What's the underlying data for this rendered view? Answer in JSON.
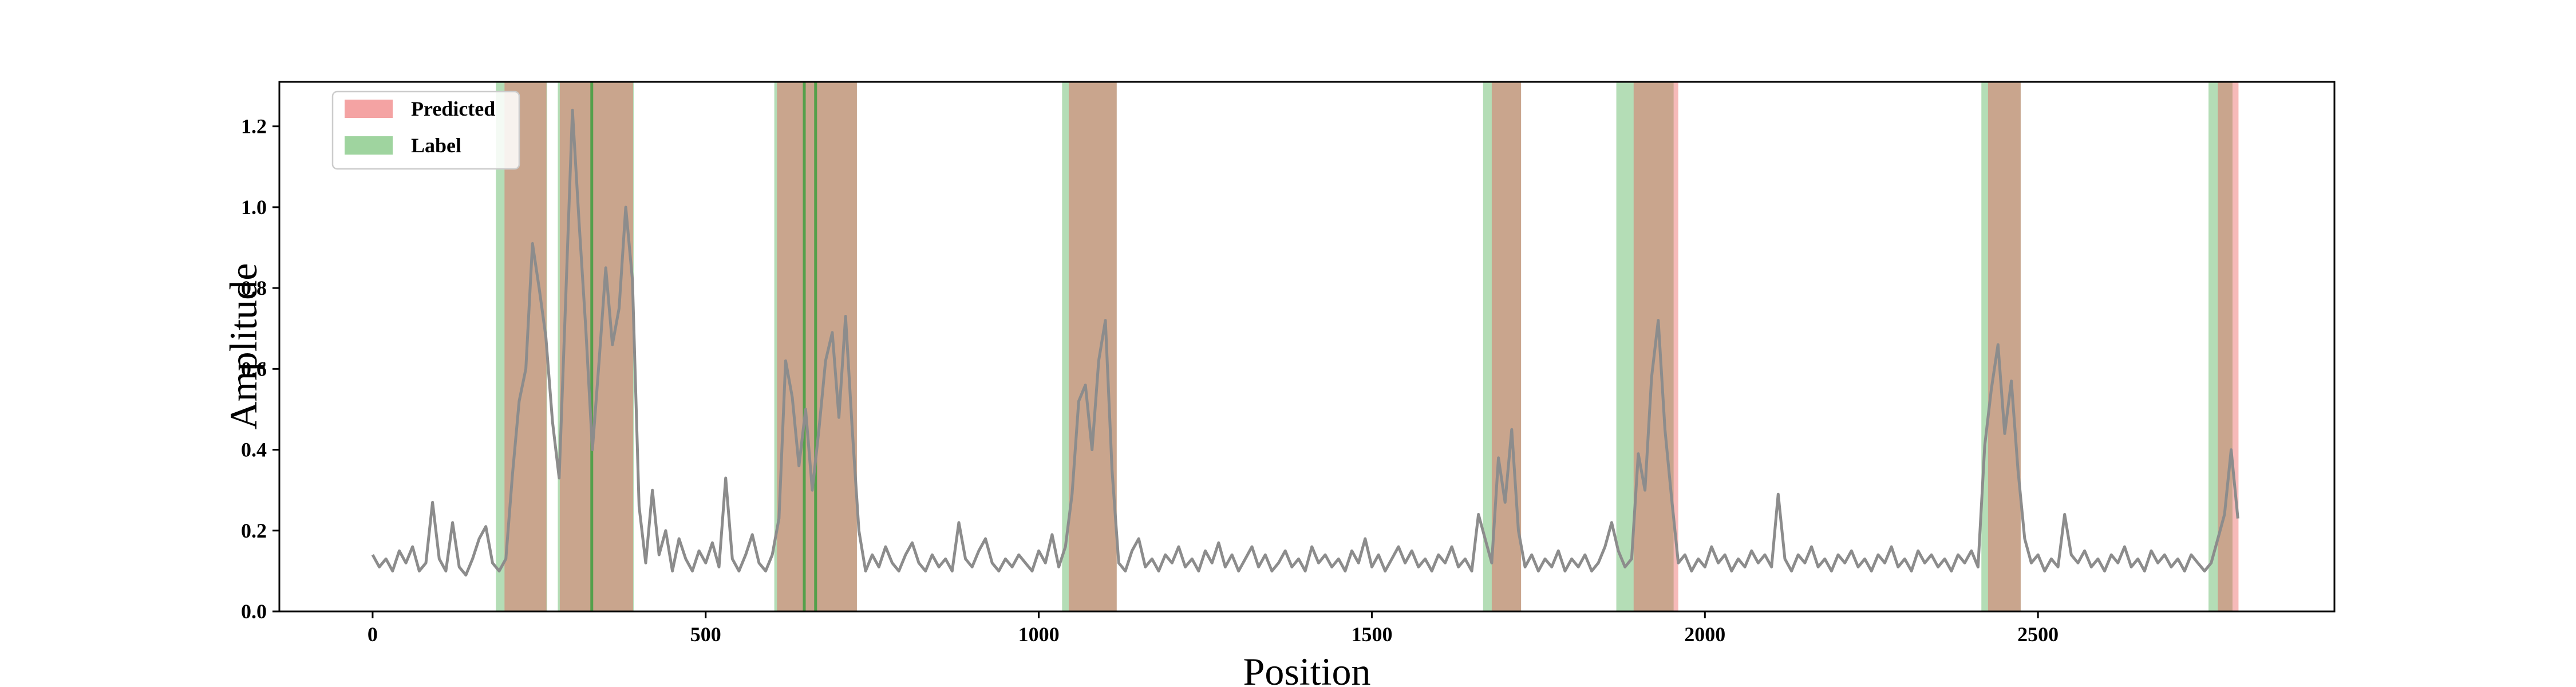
{
  "chart_data": {
    "type": "line",
    "title": "",
    "xlabel": "Position",
    "ylabel": "Amplitude",
    "xlim": [
      -140,
      2945
    ],
    "ylim": [
      0,
      1.31
    ],
    "x_ticks": [
      0,
      500,
      1000,
      1500,
      2000,
      2500
    ],
    "y_ticks": [
      0.0,
      0.2,
      0.4,
      0.6,
      0.8,
      1.0,
      1.2
    ],
    "x_tick_labels": [
      "0",
      "500",
      "1000",
      "1500",
      "2000",
      "2500"
    ],
    "y_tick_labels": [
      "0.0",
      "0.2",
      "0.4",
      "0.6",
      "0.8",
      "1.0",
      "1.2"
    ],
    "grid": false,
    "legend": {
      "position": "top-left",
      "entries": [
        {
          "label": "Predicted",
          "color": "#f4a3a3"
        },
        {
          "label": "Label",
          "color": "#9fd49f"
        }
      ]
    },
    "series": [
      {
        "color": "#8c8c8c",
        "points": [
          [
            0,
            0.14
          ],
          [
            10,
            0.11
          ],
          [
            20,
            0.13
          ],
          [
            30,
            0.1
          ],
          [
            40,
            0.15
          ],
          [
            50,
            0.12
          ],
          [
            60,
            0.16
          ],
          [
            70,
            0.1
          ],
          [
            80,
            0.12
          ],
          [
            90,
            0.27
          ],
          [
            100,
            0.13
          ],
          [
            110,
            0.1
          ],
          [
            120,
            0.22
          ],
          [
            130,
            0.11
          ],
          [
            140,
            0.09
          ],
          [
            150,
            0.13
          ],
          [
            160,
            0.18
          ],
          [
            170,
            0.21
          ],
          [
            180,
            0.12
          ],
          [
            190,
            0.1
          ],
          [
            200,
            0.13
          ],
          [
            210,
            0.34
          ],
          [
            220,
            0.52
          ],
          [
            230,
            0.6
          ],
          [
            240,
            0.91
          ],
          [
            250,
            0.8
          ],
          [
            260,
            0.68
          ],
          [
            270,
            0.47
          ],
          [
            280,
            0.33
          ],
          [
            290,
            0.78
          ],
          [
            300,
            1.24
          ],
          [
            310,
            0.96
          ],
          [
            320,
            0.7
          ],
          [
            330,
            0.4
          ],
          [
            340,
            0.62
          ],
          [
            350,
            0.85
          ],
          [
            360,
            0.66
          ],
          [
            370,
            0.75
          ],
          [
            380,
            1.0
          ],
          [
            390,
            0.82
          ],
          [
            400,
            0.26
          ],
          [
            410,
            0.12
          ],
          [
            420,
            0.3
          ],
          [
            430,
            0.14
          ],
          [
            440,
            0.2
          ],
          [
            450,
            0.1
          ],
          [
            460,
            0.18
          ],
          [
            470,
            0.13
          ],
          [
            480,
            0.1
          ],
          [
            490,
            0.15
          ],
          [
            500,
            0.12
          ],
          [
            510,
            0.17
          ],
          [
            520,
            0.11
          ],
          [
            530,
            0.33
          ],
          [
            540,
            0.13
          ],
          [
            550,
            0.1
          ],
          [
            560,
            0.14
          ],
          [
            570,
            0.19
          ],
          [
            580,
            0.12
          ],
          [
            590,
            0.1
          ],
          [
            600,
            0.14
          ],
          [
            610,
            0.23
          ],
          [
            620,
            0.62
          ],
          [
            630,
            0.53
          ],
          [
            640,
            0.36
          ],
          [
            650,
            0.5
          ],
          [
            660,
            0.3
          ],
          [
            670,
            0.45
          ],
          [
            680,
            0.62
          ],
          [
            690,
            0.69
          ],
          [
            700,
            0.48
          ],
          [
            710,
            0.73
          ],
          [
            720,
            0.45
          ],
          [
            730,
            0.2
          ],
          [
            740,
            0.1
          ],
          [
            750,
            0.14
          ],
          [
            760,
            0.11
          ],
          [
            770,
            0.16
          ],
          [
            780,
            0.12
          ],
          [
            790,
            0.1
          ],
          [
            800,
            0.14
          ],
          [
            810,
            0.17
          ],
          [
            820,
            0.12
          ],
          [
            830,
            0.1
          ],
          [
            840,
            0.14
          ],
          [
            850,
            0.11
          ],
          [
            860,
            0.13
          ],
          [
            870,
            0.1
          ],
          [
            880,
            0.22
          ],
          [
            890,
            0.13
          ],
          [
            900,
            0.11
          ],
          [
            910,
            0.15
          ],
          [
            920,
            0.18
          ],
          [
            930,
            0.12
          ],
          [
            940,
            0.1
          ],
          [
            950,
            0.13
          ],
          [
            960,
            0.11
          ],
          [
            970,
            0.14
          ],
          [
            980,
            0.12
          ],
          [
            990,
            0.1
          ],
          [
            1000,
            0.15
          ],
          [
            1010,
            0.12
          ],
          [
            1020,
            0.19
          ],
          [
            1030,
            0.11
          ],
          [
            1040,
            0.16
          ],
          [
            1050,
            0.29
          ],
          [
            1060,
            0.52
          ],
          [
            1070,
            0.56
          ],
          [
            1080,
            0.4
          ],
          [
            1090,
            0.62
          ],
          [
            1100,
            0.72
          ],
          [
            1110,
            0.35
          ],
          [
            1120,
            0.12
          ],
          [
            1130,
            0.1
          ],
          [
            1140,
            0.15
          ],
          [
            1150,
            0.18
          ],
          [
            1160,
            0.11
          ],
          [
            1170,
            0.13
          ],
          [
            1180,
            0.1
          ],
          [
            1190,
            0.14
          ],
          [
            1200,
            0.12
          ],
          [
            1210,
            0.16
          ],
          [
            1220,
            0.11
          ],
          [
            1230,
            0.13
          ],
          [
            1240,
            0.1
          ],
          [
            1250,
            0.15
          ],
          [
            1260,
            0.12
          ],
          [
            1270,
            0.17
          ],
          [
            1280,
            0.11
          ],
          [
            1290,
            0.14
          ],
          [
            1300,
            0.1
          ],
          [
            1310,
            0.13
          ],
          [
            1320,
            0.16
          ],
          [
            1330,
            0.11
          ],
          [
            1340,
            0.14
          ],
          [
            1350,
            0.1
          ],
          [
            1360,
            0.12
          ],
          [
            1370,
            0.15
          ],
          [
            1380,
            0.11
          ],
          [
            1390,
            0.13
          ],
          [
            1400,
            0.1
          ],
          [
            1410,
            0.16
          ],
          [
            1420,
            0.12
          ],
          [
            1430,
            0.14
          ],
          [
            1440,
            0.11
          ],
          [
            1450,
            0.13
          ],
          [
            1460,
            0.1
          ],
          [
            1470,
            0.15
          ],
          [
            1480,
            0.12
          ],
          [
            1490,
            0.18
          ],
          [
            1500,
            0.11
          ],
          [
            1510,
            0.14
          ],
          [
            1520,
            0.1
          ],
          [
            1530,
            0.13
          ],
          [
            1540,
            0.16
          ],
          [
            1550,
            0.12
          ],
          [
            1560,
            0.15
          ],
          [
            1570,
            0.11
          ],
          [
            1580,
            0.13
          ],
          [
            1590,
            0.1
          ],
          [
            1600,
            0.14
          ],
          [
            1610,
            0.12
          ],
          [
            1620,
            0.16
          ],
          [
            1630,
            0.11
          ],
          [
            1640,
            0.13
          ],
          [
            1650,
            0.1
          ],
          [
            1660,
            0.24
          ],
          [
            1670,
            0.18
          ],
          [
            1680,
            0.12
          ],
          [
            1690,
            0.38
          ],
          [
            1700,
            0.27
          ],
          [
            1710,
            0.45
          ],
          [
            1720,
            0.2
          ],
          [
            1730,
            0.11
          ],
          [
            1740,
            0.14
          ],
          [
            1750,
            0.1
          ],
          [
            1760,
            0.13
          ],
          [
            1770,
            0.11
          ],
          [
            1780,
            0.15
          ],
          [
            1790,
            0.1
          ],
          [
            1800,
            0.13
          ],
          [
            1810,
            0.11
          ],
          [
            1820,
            0.14
          ],
          [
            1830,
            0.1
          ],
          [
            1840,
            0.12
          ],
          [
            1850,
            0.16
          ],
          [
            1860,
            0.22
          ],
          [
            1870,
            0.15
          ],
          [
            1880,
            0.11
          ],
          [
            1890,
            0.13
          ],
          [
            1900,
            0.39
          ],
          [
            1910,
            0.3
          ],
          [
            1920,
            0.58
          ],
          [
            1930,
            0.72
          ],
          [
            1940,
            0.45
          ],
          [
            1950,
            0.28
          ],
          [
            1960,
            0.12
          ],
          [
            1970,
            0.14
          ],
          [
            1980,
            0.1
          ],
          [
            1990,
            0.13
          ],
          [
            2000,
            0.11
          ],
          [
            2010,
            0.16
          ],
          [
            2020,
            0.12
          ],
          [
            2030,
            0.14
          ],
          [
            2040,
            0.1
          ],
          [
            2050,
            0.13
          ],
          [
            2060,
            0.11
          ],
          [
            2070,
            0.15
          ],
          [
            2080,
            0.12
          ],
          [
            2090,
            0.14
          ],
          [
            2100,
            0.11
          ],
          [
            2110,
            0.29
          ],
          [
            2120,
            0.13
          ],
          [
            2130,
            0.1
          ],
          [
            2140,
            0.14
          ],
          [
            2150,
            0.12
          ],
          [
            2160,
            0.16
          ],
          [
            2170,
            0.11
          ],
          [
            2180,
            0.13
          ],
          [
            2190,
            0.1
          ],
          [
            2200,
            0.14
          ],
          [
            2210,
            0.12
          ],
          [
            2220,
            0.15
          ],
          [
            2230,
            0.11
          ],
          [
            2240,
            0.13
          ],
          [
            2250,
            0.1
          ],
          [
            2260,
            0.14
          ],
          [
            2270,
            0.12
          ],
          [
            2280,
            0.16
          ],
          [
            2290,
            0.11
          ],
          [
            2300,
            0.13
          ],
          [
            2310,
            0.1
          ],
          [
            2320,
            0.15
          ],
          [
            2330,
            0.12
          ],
          [
            2340,
            0.14
          ],
          [
            2350,
            0.11
          ],
          [
            2360,
            0.13
          ],
          [
            2370,
            0.1
          ],
          [
            2380,
            0.14
          ],
          [
            2390,
            0.12
          ],
          [
            2400,
            0.15
          ],
          [
            2410,
            0.11
          ],
          [
            2420,
            0.41
          ],
          [
            2430,
            0.55
          ],
          [
            2440,
            0.66
          ],
          [
            2450,
            0.44
          ],
          [
            2460,
            0.57
          ],
          [
            2470,
            0.35
          ],
          [
            2480,
            0.18
          ],
          [
            2490,
            0.12
          ],
          [
            2500,
            0.14
          ],
          [
            2510,
            0.1
          ],
          [
            2520,
            0.13
          ],
          [
            2530,
            0.11
          ],
          [
            2540,
            0.24
          ],
          [
            2550,
            0.14
          ],
          [
            2560,
            0.12
          ],
          [
            2570,
            0.15
          ],
          [
            2580,
            0.11
          ],
          [
            2590,
            0.13
          ],
          [
            2600,
            0.1
          ],
          [
            2610,
            0.14
          ],
          [
            2620,
            0.12
          ],
          [
            2630,
            0.16
          ],
          [
            2640,
            0.11
          ],
          [
            2650,
            0.13
          ],
          [
            2660,
            0.1
          ],
          [
            2670,
            0.15
          ],
          [
            2680,
            0.12
          ],
          [
            2690,
            0.14
          ],
          [
            2700,
            0.11
          ],
          [
            2710,
            0.13
          ],
          [
            2720,
            0.1
          ],
          [
            2730,
            0.14
          ],
          [
            2740,
            0.12
          ],
          [
            2750,
            0.1
          ],
          [
            2760,
            0.12
          ],
          [
            2770,
            0.18
          ],
          [
            2780,
            0.24
          ],
          [
            2790,
            0.4
          ],
          [
            2800,
            0.23
          ]
        ]
      }
    ],
    "label_regions": [
      [
        185,
        262
      ],
      [
        278,
        392
      ],
      [
        603,
        727
      ],
      [
        1035,
        1117
      ],
      [
        1667,
        1724
      ],
      [
        1867,
        1953
      ],
      [
        2415,
        2474
      ],
      [
        2756,
        2792
      ]
    ],
    "label_boundary_lines": [
      329,
      648,
      665
    ],
    "predicted_regions": [
      [
        198,
        261
      ],
      [
        281,
        391
      ],
      [
        607,
        727
      ],
      [
        1045,
        1117
      ],
      [
        1680,
        1724
      ],
      [
        1893,
        1960
      ],
      [
        2425,
        2474
      ],
      [
        2770,
        2801
      ]
    ]
  }
}
